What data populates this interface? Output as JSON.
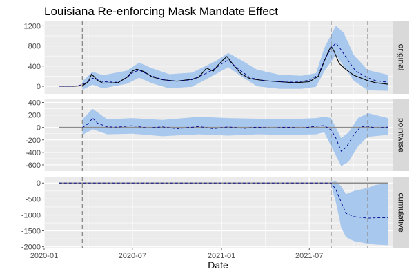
{
  "chart_data": {
    "type": "line",
    "title": "Louisiana Re-enforcing Mask Mandate Effect",
    "xlabel": "Date",
    "ylabel": "",
    "x_ticks": [
      "2020-01",
      "2020-07",
      "2021-01",
      "2021-07"
    ],
    "x_range": [
      "2020-01-01",
      "2021-12-20"
    ],
    "vlines": [
      "2020-03-20",
      "2021-08-15",
      "2021-10-30"
    ],
    "grid": true,
    "legend": "none",
    "colors": {
      "panel_bg": "#ebebeb",
      "grid": "#ffffff",
      "ribbon": "#a9c8ee",
      "line": "#000000",
      "dashed": "#00008b",
      "ref_line": "#8c8c8c",
      "vline": "#8c8c8c",
      "strip_bg": "#d9d9d9"
    },
    "panels": [
      {
        "name": "original",
        "ylim": [
          -150,
          1300
        ],
        "y_ticks": [
          0,
          400,
          800,
          1200
        ],
        "tick_labels": [
          "0",
          "400",
          "800",
          "1200"
        ],
        "series": [
          {
            "role": "observed",
            "x": [
              "2020-02-01",
              "2020-03-01",
              "2020-03-20",
              "2020-04-01",
              "2020-04-08",
              "2020-04-20",
              "2020-05-01",
              "2020-06-01",
              "2020-06-20",
              "2020-07-01",
              "2020-07-10",
              "2020-07-25",
              "2020-08-10",
              "2020-09-01",
              "2020-10-01",
              "2020-11-01",
              "2020-11-15",
              "2020-12-01",
              "2020-12-15",
              "2020-12-25",
              "2021-01-05",
              "2021-01-12",
              "2021-01-25",
              "2021-02-10",
              "2021-03-01",
              "2021-04-01",
              "2021-05-01",
              "2021-06-01",
              "2021-07-01",
              "2021-07-20",
              "2021-08-01",
              "2021-08-10",
              "2021-08-15",
              "2021-08-20",
              "2021-09-01",
              "2021-09-15",
              "2021-10-01",
              "2021-10-30",
              "2021-11-15",
              "2021-12-10"
            ],
            "y": [
              0,
              0,
              10,
              90,
              240,
              120,
              60,
              70,
              180,
              300,
              340,
              290,
              190,
              130,
              100,
              140,
              180,
              360,
              300,
              420,
              530,
              590,
              430,
              250,
              150,
              110,
              90,
              70,
              90,
              200,
              500,
              700,
              790,
              720,
              450,
              330,
              220,
              110,
              70,
              40
            ]
          },
          {
            "role": "predicted",
            "x": [
              "2020-02-01",
              "2020-03-01",
              "2020-03-20",
              "2020-04-01",
              "2020-04-10",
              "2020-04-20",
              "2020-05-01",
              "2020-06-01",
              "2020-06-20",
              "2020-07-01",
              "2020-07-15",
              "2020-08-01",
              "2020-09-01",
              "2020-10-01",
              "2020-11-01",
              "2020-12-01",
              "2020-12-20",
              "2021-01-05",
              "2021-01-15",
              "2021-02-01",
              "2021-03-01",
              "2021-04-01",
              "2021-05-01",
              "2021-06-01",
              "2021-07-01",
              "2021-07-20",
              "2021-08-01",
              "2021-08-15",
              "2021-08-25",
              "2021-09-05",
              "2021-09-20",
              "2021-10-05",
              "2021-10-30",
              "2021-11-15",
              "2021-12-10"
            ],
            "y": [
              0,
              0,
              30,
              100,
              160,
              130,
              90,
              80,
              170,
              270,
              320,
              240,
              130,
              100,
              130,
              260,
              360,
              470,
              520,
              370,
              170,
              110,
              90,
              80,
              120,
              230,
              520,
              750,
              860,
              720,
              500,
              300,
              170,
              110,
              80
            ]
          }
        ],
        "ribbon": {
          "x": [
            "2020-03-20",
            "2020-04-10",
            "2020-05-01",
            "2020-06-20",
            "2020-07-15",
            "2020-08-10",
            "2020-09-15",
            "2020-11-01",
            "2020-12-20",
            "2021-01-15",
            "2021-02-10",
            "2021-03-15",
            "2021-05-01",
            "2021-06-15",
            "2021-07-15",
            "2021-08-01",
            "2021-08-25",
            "2021-09-10",
            "2021-10-01",
            "2021-10-30",
            "2021-12-10"
          ],
          "lower": [
            -70,
            30,
            -40,
            50,
            170,
            60,
            -40,
            -10,
            240,
            380,
            200,
            0,
            -50,
            -50,
            -10,
            300,
            620,
            400,
            110,
            -80,
            -90
          ],
          "upper": [
            100,
            290,
            220,
            310,
            470,
            360,
            240,
            270,
            500,
            660,
            520,
            330,
            230,
            210,
            260,
            760,
            1200,
            1060,
            620,
            320,
            230
          ]
        }
      },
      {
        "name": "pointwise",
        "ylim": [
          -700,
          450
        ],
        "y_ticks": [
          -600,
          -400,
          -200,
          0,
          200,
          400
        ],
        "tick_labels": [
          "-600",
          "-400",
          "-200",
          "0",
          "200",
          "400"
        ],
        "ref_line": 0,
        "series": [
          {
            "role": "pointwise",
            "x": [
              "2020-03-20",
              "2020-04-01",
              "2020-04-10",
              "2020-04-20",
              "2020-05-10",
              "2020-06-01",
              "2020-07-01",
              "2020-08-01",
              "2020-09-01",
              "2020-10-01",
              "2020-11-15",
              "2020-12-15",
              "2021-01-15",
              "2021-02-15",
              "2021-03-15",
              "2021-04-15",
              "2021-05-15",
              "2021-06-15",
              "2021-07-15",
              "2021-08-01",
              "2021-08-15",
              "2021-08-25",
              "2021-09-05",
              "2021-09-15",
              "2021-10-01",
              "2021-10-15",
              "2021-10-30",
              "2021-11-15",
              "2021-12-10"
            ],
            "y": [
              0,
              60,
              150,
              70,
              10,
              5,
              30,
              -10,
              10,
              -20,
              15,
              -20,
              10,
              -15,
              5,
              -10,
              5,
              -10,
              20,
              30,
              -40,
              -170,
              -380,
              -320,
              -120,
              10,
              20,
              -10,
              5
            ]
          }
        ],
        "ribbon": {
          "x": [
            "2020-03-20",
            "2020-04-10",
            "2020-05-10",
            "2020-07-01",
            "2020-09-01",
            "2020-11-15",
            "2021-01-15",
            "2021-03-15",
            "2021-05-15",
            "2021-07-15",
            "2021-08-01",
            "2021-08-15",
            "2021-09-05",
            "2021-09-20",
            "2021-10-10",
            "2021-10-30",
            "2021-12-10"
          ],
          "lower": [
            -120,
            -30,
            -110,
            -100,
            -140,
            -110,
            -130,
            -110,
            -120,
            -110,
            -80,
            -300,
            -620,
            -550,
            -300,
            -150,
            -120
          ],
          "upper": [
            130,
            300,
            130,
            150,
            120,
            170,
            150,
            140,
            130,
            150,
            170,
            150,
            -170,
            -80,
            150,
            230,
            150
          ]
        }
      },
      {
        "name": "cumulative",
        "ylim": [
          -2050,
          200
        ],
        "y_ticks": [
          -2000,
          -1500,
          -1000,
          -500,
          0
        ],
        "tick_labels": [
          "-2000",
          "-1500",
          "-1000",
          "-500",
          "0"
        ],
        "ref_line": 0,
        "series": [
          {
            "role": "cumulative",
            "x": [
              "2020-02-01",
              "2021-08-15",
              "2021-08-25",
              "2021-09-05",
              "2021-09-15",
              "2021-10-01",
              "2021-10-30",
              "2021-11-15",
              "2021-12-10"
            ],
            "y": [
              0,
              0,
              -200,
              -600,
              -950,
              -1050,
              -1100,
              -1090,
              -1090
            ]
          }
        ],
        "ribbon": {
          "x": [
            "2021-08-15",
            "2021-08-25",
            "2021-09-05",
            "2021-09-15",
            "2021-10-01",
            "2021-10-30",
            "2021-11-15",
            "2021-12-10"
          ],
          "lower": [
            -50,
            -600,
            -1400,
            -1700,
            -1820,
            -1900,
            -1930,
            -1950
          ],
          "upper": [
            30,
            50,
            -100,
            -350,
            -250,
            -150,
            -60,
            -10
          ]
        }
      }
    ]
  }
}
